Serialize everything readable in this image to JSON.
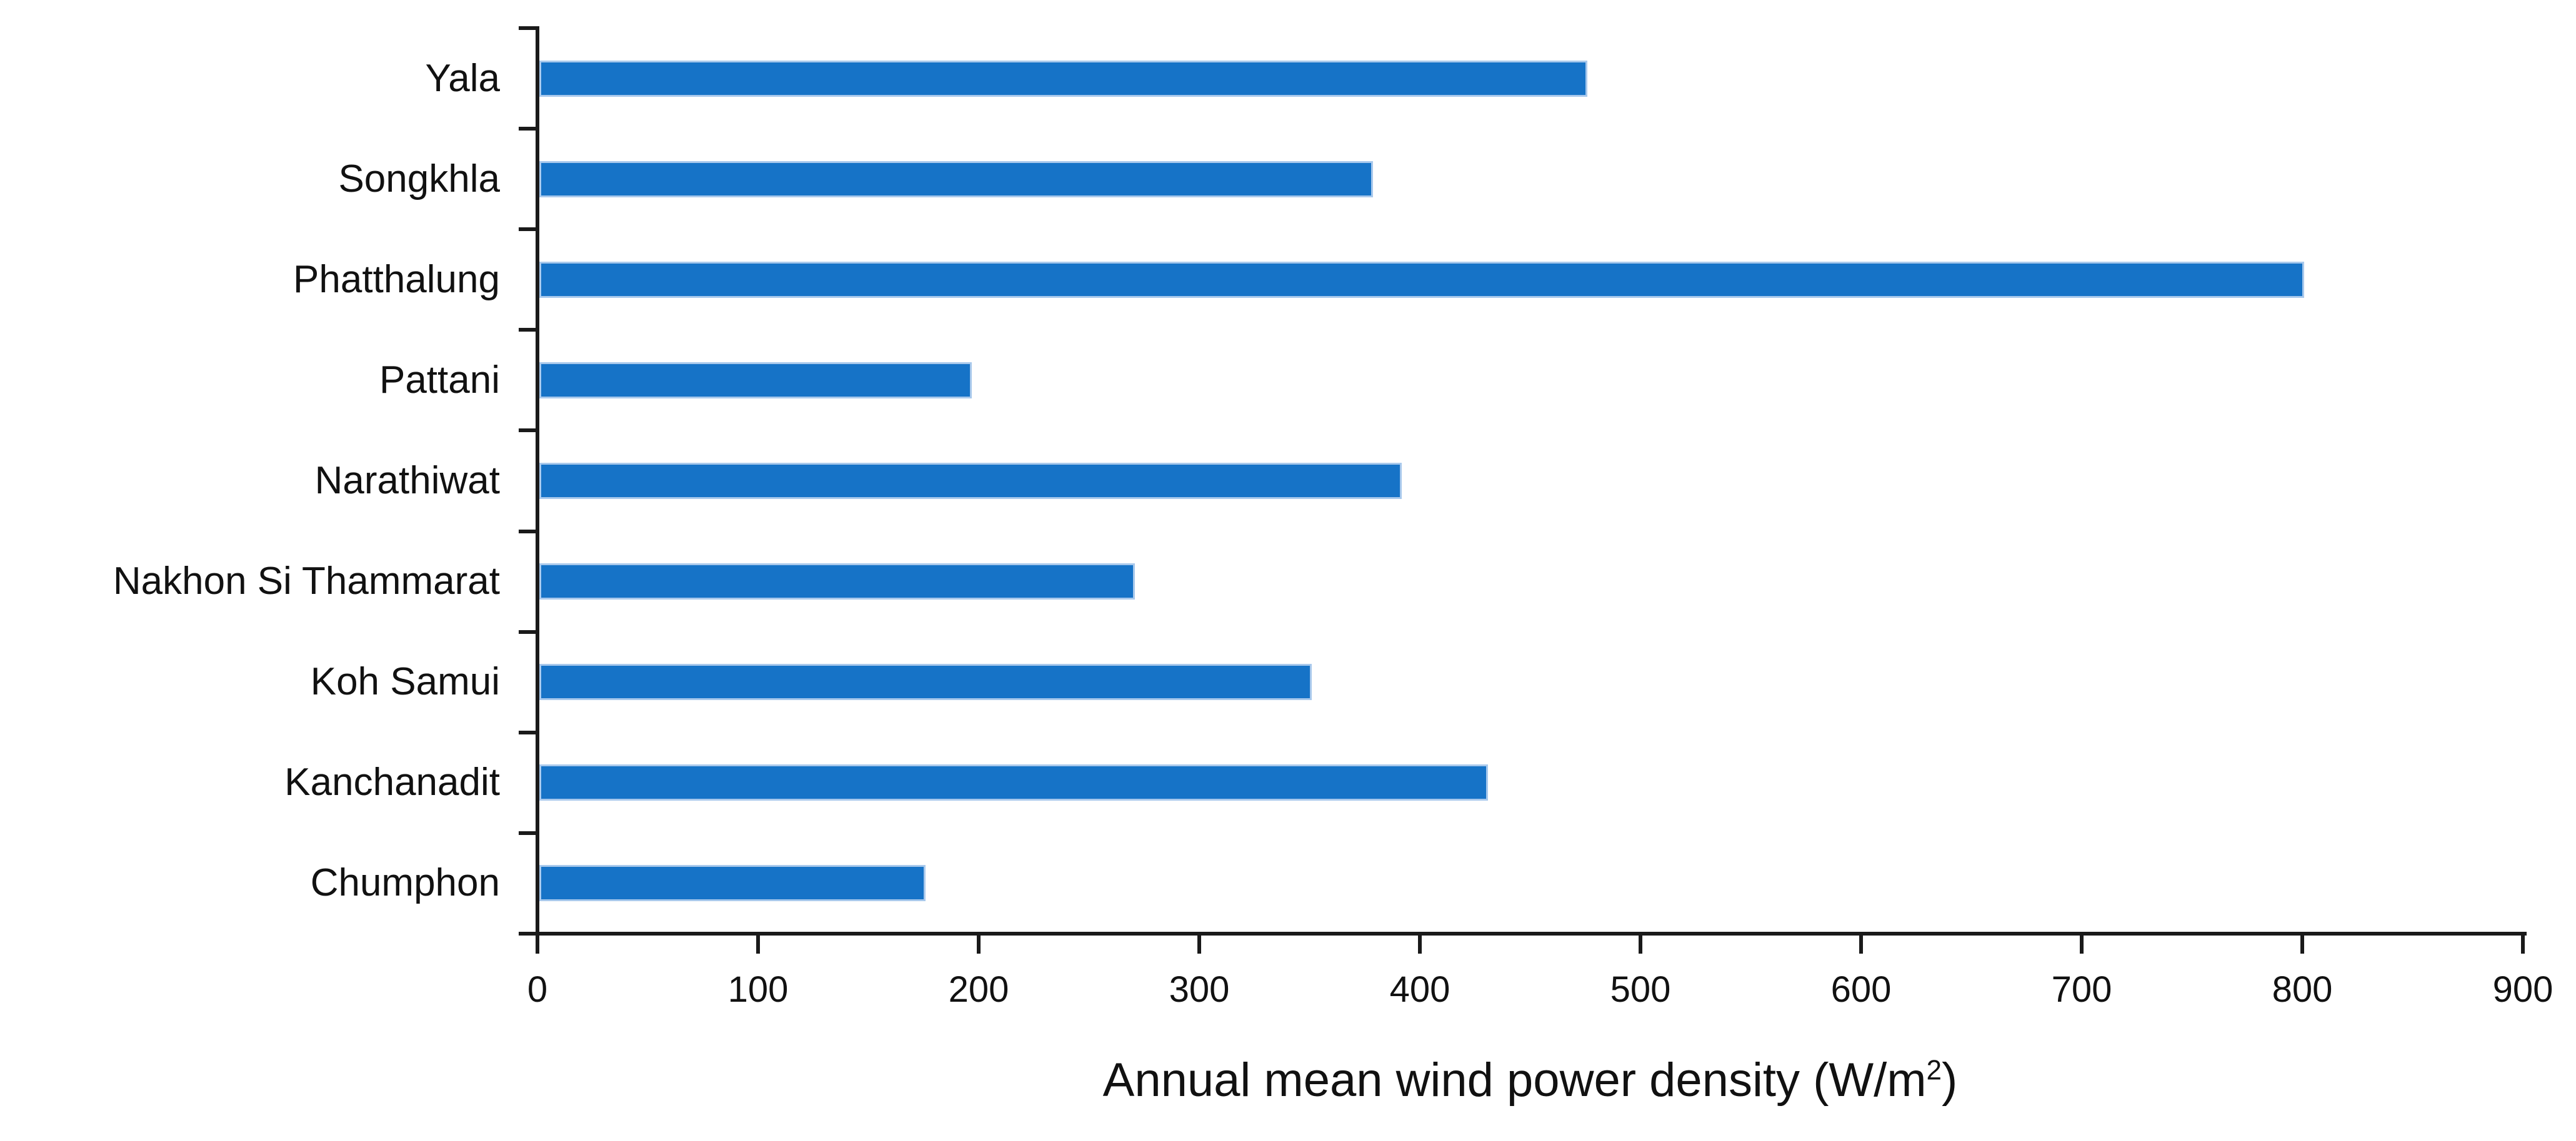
{
  "colors": {
    "bar_fill": "#1673C7",
    "bar_edge": "#a9c9ec",
    "axis": "#1a1a1a",
    "background": "#ffffff",
    "text": "#111111"
  },
  "chart_data": {
    "type": "bar",
    "orientation": "horizontal",
    "title": "",
    "categories": [
      "Yala",
      "Songkhla",
      "Phatthalung",
      "Pattani",
      "Narathiwat",
      "Nakhon Si Thammarat",
      "Koh Samui",
      "Kanchanadit",
      "Chumphon"
    ],
    "values": [
      475,
      378,
      800,
      196,
      391,
      270,
      350,
      430,
      175
    ],
    "xlabel": "Annual mean wind power density (W/m2)",
    "xlabel_parts": {
      "pre": "Annual mean wind power density (W/m",
      "sup": "2",
      "post": ")"
    },
    "ylabel": "",
    "xlim": [
      0,
      900
    ],
    "xticks": [
      0,
      100,
      200,
      300,
      400,
      500,
      600,
      700,
      800,
      900
    ],
    "grid": false,
    "legend": false,
    "bar_color": "#1673C7"
  }
}
